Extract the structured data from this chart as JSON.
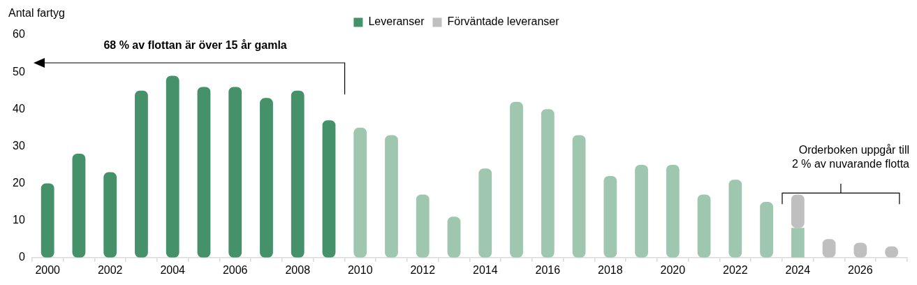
{
  "chart_data": {
    "type": "bar",
    "stacked": true,
    "ylabel": "Antal fartyg",
    "categories": [
      "2000",
      null,
      "2002",
      null,
      "2004",
      null,
      "2006",
      null,
      "2008",
      null,
      "2010",
      null,
      "2012",
      null,
      "2014",
      null,
      "2016",
      null,
      "2018",
      null,
      "2020",
      null,
      "2022",
      null,
      "2024",
      null,
      "2026",
      null
    ],
    "series": [
      {
        "name": "Leveranser",
        "color": "#44916a",
        "colors": [
          "#44916a",
          "#44916a",
          "#44916a",
          "#44916a",
          "#44916a",
          "#44916a",
          "#44916a",
          "#44916a",
          "#44916a",
          "#44916a",
          "#9fc6ae",
          "#9fc6ae",
          "#9fc6ae",
          "#9fc6ae",
          "#9fc6ae",
          "#9fc6ae",
          "#9fc6ae",
          "#9fc6ae",
          "#9fc6ae",
          "#9fc6ae",
          "#9fc6ae",
          "#9fc6ae",
          "#9fc6ae",
          "#9fc6ae",
          "#9fc6ae",
          "#9fc6ae",
          "#9fc6ae",
          "#9fc6ae"
        ],
        "values": [
          20,
          28,
          23,
          45,
          49,
          46,
          46,
          43,
          45,
          37,
          35,
          33,
          17,
          11,
          24,
          42,
          40,
          33,
          22,
          25,
          25,
          17,
          21,
          15,
          8,
          null,
          null,
          null
        ]
      },
      {
        "name": "Förväntade leveranser",
        "color": "#bfbfbf",
        "values": [
          null,
          null,
          null,
          null,
          null,
          null,
          null,
          null,
          null,
          null,
          null,
          null,
          null,
          null,
          null,
          null,
          null,
          null,
          null,
          null,
          null,
          null,
          null,
          null,
          9,
          5,
          4,
          3
        ]
      }
    ],
    "ylim": [
      0,
      60
    ],
    "yticks": [
      0,
      10,
      20,
      30,
      40,
      50,
      60
    ],
    "grid": false,
    "legend": "top",
    "annotations": [
      "68 % av flottan är över 15 år gamla",
      "Orderboken uppgår till\n2 % av nuvarande flotta"
    ]
  }
}
